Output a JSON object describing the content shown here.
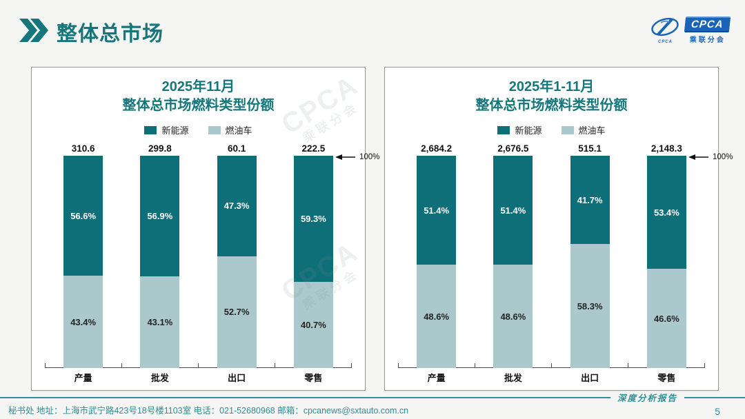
{
  "page": {
    "header": {
      "title": "整体总市场"
    },
    "logo": {
      "brand": "CPCA",
      "subtitle": "乘联分会",
      "emblem_caption": "CPCA"
    },
    "watermark": {
      "line1": "CPCA",
      "line2": "乘联分会"
    },
    "footer": {
      "left_text": "秘书处   地址：上海市武宁路423号18号楼1103室  电话：021-52680968   邮箱：cpcanews@sxtauto.com.cn",
      "report_label": "深度分析报告",
      "page_number": "5"
    }
  },
  "colors": {
    "accent_teal": "#15777b",
    "new_energy_bar": "#0f6f79",
    "fuel_bar": "#abc9cc",
    "footer_teal": "#2e8f96",
    "logo_blue": "#1a64b7",
    "axis": "#4a4a4a"
  },
  "chart_data": [
    {
      "type": "bar",
      "subtype": "stacked-100-percent",
      "title_line1": "2025年11月",
      "title_line2": "整体总市场燃料类型份额",
      "legend_position": "top",
      "categories": [
        "产量",
        "批发",
        "出口",
        "零售"
      ],
      "totals": [
        310.6,
        299.8,
        60.1,
        222.5
      ],
      "totals_display": [
        "310.6",
        "299.8",
        "60.1",
        "222.5"
      ],
      "series": [
        {
          "name": "新能源",
          "color": "#0f6f79",
          "values_pct": [
            56.6,
            56.9,
            47.3,
            59.3
          ]
        },
        {
          "name": "燃油车",
          "color": "#abc9cc",
          "values_pct": [
            43.4,
            43.1,
            52.7,
            40.7
          ]
        }
      ],
      "ylim": [
        0,
        100
      ],
      "axis_annotation": "100%",
      "xlabel": "",
      "ylabel": ""
    },
    {
      "type": "bar",
      "subtype": "stacked-100-percent",
      "title_line1": "2025年1-11月",
      "title_line2": "整体总市场燃料类型份额",
      "legend_position": "top",
      "categories": [
        "产量",
        "批发",
        "出口",
        "零售"
      ],
      "totals": [
        2684.2,
        2676.5,
        515.1,
        2148.3
      ],
      "totals_display": [
        "2,684.2",
        "2,676.5",
        "515.1",
        "2,148.3"
      ],
      "series": [
        {
          "name": "新能源",
          "color": "#0f6f79",
          "values_pct": [
            51.4,
            51.4,
            41.7,
            53.4
          ]
        },
        {
          "name": "燃油车",
          "color": "#abc9cc",
          "values_pct": [
            48.6,
            48.6,
            58.3,
            46.6
          ]
        }
      ],
      "ylim": [
        0,
        100
      ],
      "axis_annotation": "100%",
      "xlabel": "",
      "ylabel": ""
    }
  ]
}
